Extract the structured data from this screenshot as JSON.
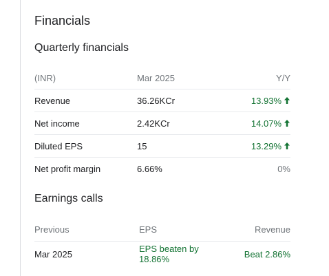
{
  "section": {
    "title": "Financials"
  },
  "quarterly": {
    "title": "Quarterly financials",
    "headers": {
      "label": "(INR)",
      "period": "Mar 2025",
      "change": "Y/Y"
    },
    "rows": [
      {
        "label": "Revenue",
        "value": "36.26KCr",
        "change": "13.93%",
        "trend": "up"
      },
      {
        "label": "Net income",
        "value": "2.42KCr",
        "change": "14.07%",
        "trend": "up"
      },
      {
        "label": "Diluted EPS",
        "value": "15",
        "change": "13.29%",
        "trend": "up"
      },
      {
        "label": "Net profit margin",
        "value": "6.66%",
        "change": "0%",
        "trend": "flat"
      }
    ]
  },
  "earnings": {
    "title": "Earnings calls",
    "headers": {
      "previous": "Previous",
      "eps": "EPS",
      "revenue": "Revenue"
    },
    "rows": [
      {
        "period": "Mar 2025",
        "eps": "EPS beaten by 18.86%",
        "revenue": "Beat 2.86%"
      }
    ]
  },
  "colors": {
    "positive": "#137333",
    "muted": "#70757a",
    "text": "#202124",
    "divider": "#e8eaed"
  },
  "icons": {
    "trend_up": "arrow-up-icon"
  }
}
